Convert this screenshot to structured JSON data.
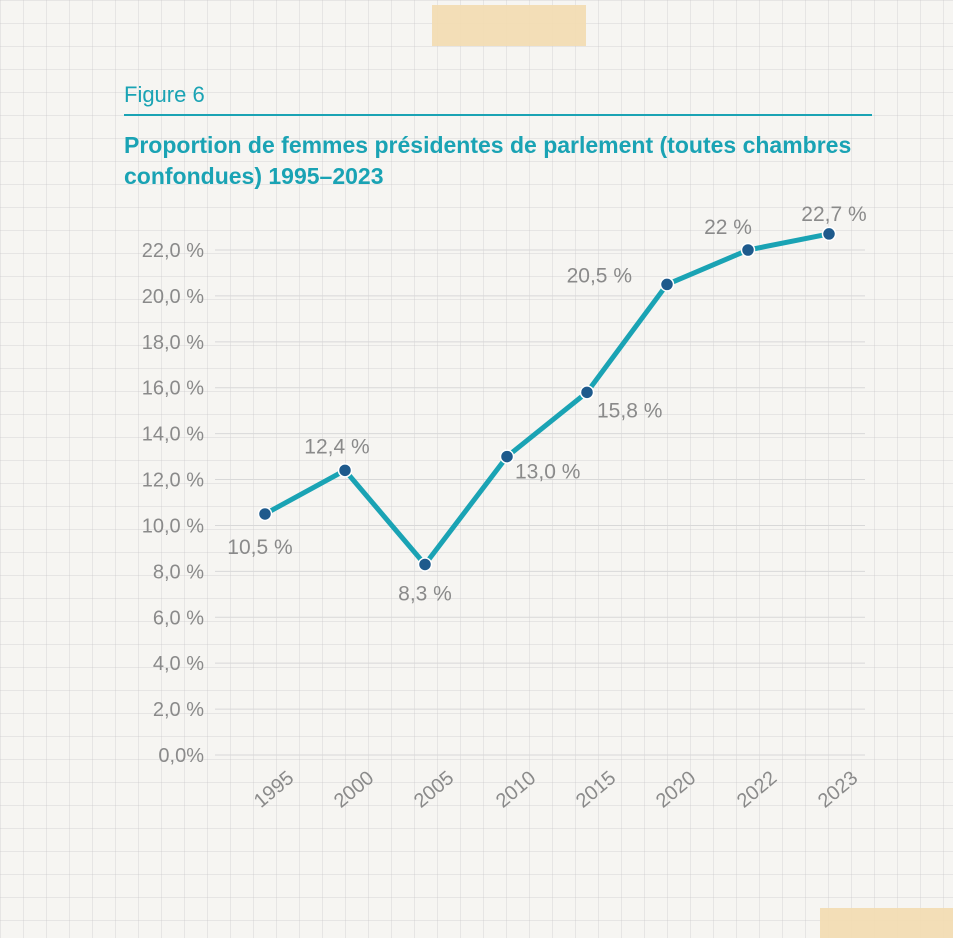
{
  "figure_label": "Figure 6",
  "title": "Proportion de femmes présidentes de parlement (toutes chambres confondues) 1995–2023",
  "colors": {
    "accent": "#1aa3b4",
    "line": "#1aa3b4",
    "marker": "#1e5a8c",
    "text": "#8a8a8a"
  },
  "chart_data": {
    "type": "line",
    "categories": [
      "1995",
      "2000",
      "2005",
      "2010",
      "2015",
      "2020",
      "2022",
      "2023"
    ],
    "values": [
      10.5,
      12.4,
      8.3,
      13.0,
      15.8,
      20.5,
      22.0,
      22.7
    ],
    "data_labels": [
      "10,5 %",
      "12,4 %",
      "8,3 %",
      "13,0 %",
      "15,8 %",
      "20,5 %",
      "22 %",
      "22,7 %"
    ],
    "y_ticks": [
      "0,0%",
      "2,0 %",
      "4,0 %",
      "6,0 %",
      "8,0 %",
      "10,0 %",
      "12,0 %",
      "14,0 %",
      "16,0 %",
      "18,0 %",
      "20,0 %",
      "22,0 %"
    ],
    "ylim": [
      0,
      22
    ],
    "grid": true,
    "legend": "none"
  }
}
